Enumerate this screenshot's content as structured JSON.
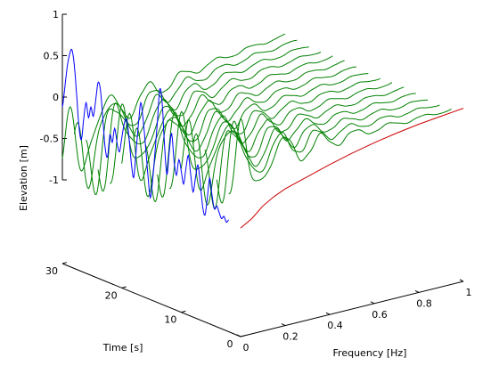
{
  "chart_data": {
    "type": "line",
    "projection": "3d",
    "xlabel": "Frequency [Hz]",
    "ylabel": "Time [s]",
    "zlabel": "Elevation [m]",
    "xlim": [
      0,
      1
    ],
    "ylim": [
      0,
      30
    ],
    "zlim": [
      -1,
      1
    ],
    "x_ticks": [
      "0",
      "0.2",
      "0.4",
      "0.6",
      "0.8",
      "1"
    ],
    "y_ticks": [
      "0",
      "10",
      "20",
      "30"
    ],
    "z_ticks": [
      "-1",
      "-0.5",
      "0",
      "0.5",
      "1"
    ],
    "grid": false,
    "legend": "none",
    "series": [
      {
        "kind": "time-trace",
        "color": "#0000ff",
        "points": [
          {
            "t": 30.0,
            "z": -0.12
          },
          {
            "t": 29.6,
            "z": 0.12
          },
          {
            "t": 29.2,
            "z": 0.38
          },
          {
            "t": 28.8,
            "z": 0.55
          },
          {
            "t": 28.4,
            "z": 0.62
          },
          {
            "t": 28.0,
            "z": 0.45
          },
          {
            "t": 27.6,
            "z": 0.1
          },
          {
            "t": 27.2,
            "z": -0.28
          },
          {
            "t": 26.8,
            "z": -0.42
          },
          {
            "t": 26.4,
            "z": -0.15
          },
          {
            "t": 26.0,
            "z": 0.05
          },
          {
            "t": 25.6,
            "z": -0.12
          },
          {
            "t": 25.2,
            "z": 0.02
          },
          {
            "t": 24.8,
            "z": -0.08
          },
          {
            "t": 24.4,
            "z": 0.12
          },
          {
            "t": 24.0,
            "z": 0.35
          },
          {
            "t": 23.6,
            "z": 0.28
          },
          {
            "t": 23.2,
            "z": -0.05
          },
          {
            "t": 22.8,
            "z": -0.4
          },
          {
            "t": 22.4,
            "z": -0.5
          },
          {
            "t": 22.0,
            "z": -0.22
          },
          {
            "t": 21.6,
            "z": -0.3
          },
          {
            "t": 21.2,
            "z": -0.12
          },
          {
            "t": 20.8,
            "z": -0.28
          },
          {
            "t": 20.4,
            "z": -0.38
          },
          {
            "t": 20.0,
            "z": -0.2
          },
          {
            "t": 19.6,
            "z": -0.02
          },
          {
            "t": 19.2,
            "z": 0.05
          },
          {
            "t": 18.8,
            "z": -0.15
          },
          {
            "t": 18.4,
            "z": -0.45
          },
          {
            "t": 18.0,
            "z": -0.62
          },
          {
            "t": 17.6,
            "z": -0.3
          },
          {
            "t": 17.2,
            "z": 0.05
          },
          {
            "t": 16.8,
            "z": 0.32
          },
          {
            "t": 16.4,
            "z": 0.12
          },
          {
            "t": 16.0,
            "z": -0.18
          },
          {
            "t": 15.6,
            "z": -0.52
          },
          {
            "t": 15.2,
            "z": -0.78
          },
          {
            "t": 14.8,
            "z": -0.55
          },
          {
            "t": 14.4,
            "z": -0.2
          },
          {
            "t": 14.0,
            "z": 0.18
          },
          {
            "t": 13.6,
            "z": 0.58
          },
          {
            "t": 13.2,
            "z": 0.42
          },
          {
            "t": 12.8,
            "z": -0.08
          },
          {
            "t": 12.4,
            "z": -0.42
          },
          {
            "t": 12.0,
            "z": -0.12
          },
          {
            "t": 11.6,
            "z": 0.1
          },
          {
            "t": 11.2,
            "z": -0.22
          },
          {
            "t": 10.8,
            "z": -0.38
          },
          {
            "t": 10.4,
            "z": -0.18
          },
          {
            "t": 10.0,
            "z": -0.3
          },
          {
            "t": 9.6,
            "z": -0.45
          },
          {
            "t": 9.2,
            "z": -0.25
          },
          {
            "t": 8.8,
            "z": -0.08
          },
          {
            "t": 8.4,
            "z": -0.3
          },
          {
            "t": 8.0,
            "z": -0.5
          },
          {
            "t": 7.6,
            "z": -0.32
          },
          {
            "t": 7.2,
            "z": -0.15
          },
          {
            "t": 6.8,
            "z": -0.35
          },
          {
            "t": 6.4,
            "z": -0.62
          },
          {
            "t": 6.0,
            "z": -0.72
          },
          {
            "t": 5.6,
            "z": -0.5
          },
          {
            "t": 5.2,
            "z": -0.25
          },
          {
            "t": 4.8,
            "z": -0.45
          },
          {
            "t": 4.4,
            "z": -0.6
          },
          {
            "t": 4.0,
            "z": -0.55
          },
          {
            "t": 3.6,
            "z": -0.62
          },
          {
            "t": 3.2,
            "z": -0.68
          },
          {
            "t": 2.8,
            "z": -0.64
          },
          {
            "t": 2.4,
            "z": -0.7
          },
          {
            "t": 2.0,
            "z": -0.66
          }
        ]
      },
      {
        "kind": "frequency-envelope",
        "color": "#cc0000",
        "points": [
          {
            "f": 0.0,
            "z": -0.7
          },
          {
            "f": 0.05,
            "z": -0.62
          },
          {
            "f": 0.1,
            "z": -0.5
          },
          {
            "f": 0.15,
            "z": -0.42
          },
          {
            "f": 0.2,
            "z": -0.36
          },
          {
            "f": 0.3,
            "z": -0.28
          },
          {
            "f": 0.4,
            "z": -0.2
          },
          {
            "f": 0.5,
            "z": -0.13
          },
          {
            "f": 0.6,
            "z": -0.07
          },
          {
            "f": 0.7,
            "z": -0.02
          },
          {
            "f": 0.8,
            "z": 0.02
          },
          {
            "f": 0.9,
            "z": 0.05
          },
          {
            "f": 1.0,
            "z": 0.08
          }
        ]
      },
      {
        "kind": "frequency-time-slices",
        "color": "#008000",
        "slice_times_s": [
          2,
          4,
          6,
          8,
          10,
          12,
          14,
          16,
          18,
          20,
          22,
          24,
          26,
          28,
          30
        ],
        "component_frequencies_hz": [
          0.06,
          0.11,
          0.16,
          0.22,
          0.3,
          0.4,
          0.5,
          0.6,
          0.7,
          0.8,
          0.9,
          1.0
        ],
        "component_amplitudes_m": [
          0.65,
          0.55,
          0.45,
          0.35,
          0.25,
          0.18,
          0.12,
          0.08,
          0.06,
          0.05,
          0.04,
          0.03
        ]
      }
    ]
  }
}
